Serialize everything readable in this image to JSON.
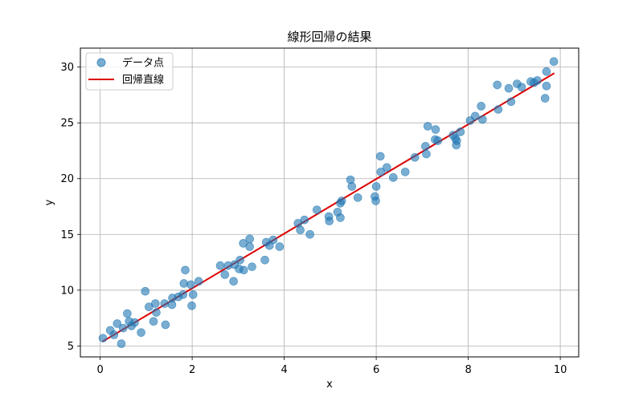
{
  "chart_data": {
    "type": "scatter",
    "title": "線形回帰の結果",
    "xlabel": "x",
    "ylabel": "y",
    "xlim": [
      -0.43,
      10.4
    ],
    "ylim": [
      4.02,
      31.7
    ],
    "xticks": [
      0,
      2,
      4,
      6,
      8,
      10
    ],
    "yticks": [
      5,
      10,
      15,
      20,
      25,
      30
    ],
    "grid": true,
    "legend_position": "top-left",
    "series": [
      {
        "name": "データ点",
        "kind": "scatter",
        "color": "#1f77b4",
        "points": [
          [
            0.06,
            5.7
          ],
          [
            0.22,
            6.4
          ],
          [
            0.3,
            6.0
          ],
          [
            0.37,
            7.0
          ],
          [
            0.46,
            5.2
          ],
          [
            0.5,
            6.6
          ],
          [
            0.59,
            7.9
          ],
          [
            0.63,
            7.2
          ],
          [
            0.68,
            6.8
          ],
          [
            0.75,
            7.1
          ],
          [
            0.89,
            6.2
          ],
          [
            0.98,
            9.9
          ],
          [
            1.06,
            8.5
          ],
          [
            1.16,
            7.2
          ],
          [
            1.2,
            8.8
          ],
          [
            1.22,
            8.0
          ],
          [
            1.42,
            6.9
          ],
          [
            1.4,
            8.8
          ],
          [
            1.56,
            8.7
          ],
          [
            1.57,
            9.3
          ],
          [
            1.7,
            9.4
          ],
          [
            1.8,
            9.6
          ],
          [
            1.82,
            10.6
          ],
          [
            1.85,
            11.8
          ],
          [
            1.97,
            10.5
          ],
          [
            1.99,
            8.6
          ],
          [
            2.02,
            9.6
          ],
          [
            2.14,
            10.8
          ],
          [
            2.61,
            12.2
          ],
          [
            2.71,
            11.4
          ],
          [
            2.78,
            12.2
          ],
          [
            2.9,
            10.8
          ],
          [
            2.92,
            12.3
          ],
          [
            3.04,
            12.7
          ],
          [
            3.02,
            11.9
          ],
          [
            3.11,
            14.2
          ],
          [
            3.12,
            11.8
          ],
          [
            3.25,
            14.6
          ],
          [
            3.25,
            13.9
          ],
          [
            3.3,
            12.1
          ],
          [
            3.58,
            12.7
          ],
          [
            3.61,
            14.3
          ],
          [
            3.68,
            14.0
          ],
          [
            3.76,
            14.5
          ],
          [
            3.9,
            13.9
          ],
          [
            4.3,
            16.0
          ],
          [
            4.35,
            15.4
          ],
          [
            4.44,
            16.3
          ],
          [
            4.56,
            15.0
          ],
          [
            4.71,
            17.2
          ],
          [
            4.97,
            16.6
          ],
          [
            4.98,
            16.2
          ],
          [
            5.16,
            17.0
          ],
          [
            5.22,
            16.5
          ],
          [
            5.22,
            17.8
          ],
          [
            5.25,
            18.0
          ],
          [
            5.44,
            19.9
          ],
          [
            5.47,
            19.3
          ],
          [
            5.6,
            18.3
          ],
          [
            5.97,
            18.4
          ],
          [
            5.99,
            18.0
          ],
          [
            6.0,
            19.3
          ],
          [
            6.09,
            22.0
          ],
          [
            6.1,
            20.6
          ],
          [
            6.23,
            21.0
          ],
          [
            6.37,
            20.1
          ],
          [
            6.63,
            20.6
          ],
          [
            6.84,
            21.9
          ],
          [
            7.07,
            22.9
          ],
          [
            7.09,
            22.2
          ],
          [
            7.12,
            24.7
          ],
          [
            7.28,
            23.5
          ],
          [
            7.29,
            24.4
          ],
          [
            7.34,
            23.4
          ],
          [
            7.67,
            23.9
          ],
          [
            7.72,
            23.6
          ],
          [
            7.74,
            23.0
          ],
          [
            7.75,
            23.4
          ],
          [
            7.83,
            24.2
          ],
          [
            8.04,
            25.2
          ],
          [
            8.15,
            25.6
          ],
          [
            8.28,
            26.5
          ],
          [
            8.31,
            25.3
          ],
          [
            8.63,
            28.4
          ],
          [
            8.65,
            26.2
          ],
          [
            8.88,
            28.1
          ],
          [
            8.93,
            26.9
          ],
          [
            9.06,
            28.5
          ],
          [
            9.16,
            28.2
          ],
          [
            9.36,
            28.7
          ],
          [
            9.43,
            28.6
          ],
          [
            9.5,
            28.8
          ],
          [
            9.67,
            27.2
          ],
          [
            9.7,
            29.6
          ],
          [
            9.7,
            28.3
          ],
          [
            9.86,
            30.5
          ]
        ]
      },
      {
        "name": "回帰直線",
        "kind": "line",
        "color": "#dd0000",
        "points": [
          [
            0.05,
            5.39
          ],
          [
            9.87,
            29.45
          ]
        ]
      }
    ]
  }
}
